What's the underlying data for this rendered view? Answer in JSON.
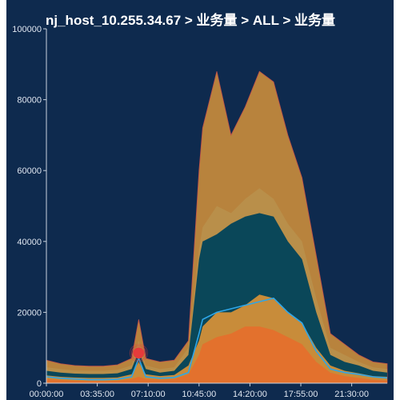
{
  "chart_data": {
    "type": "area",
    "title": "nj_host_10.255.34.67 > 业务量 > ALL > 业务量",
    "xlabel": "",
    "ylabel": "",
    "ylim": [
      0,
      100000
    ],
    "y_ticks": [
      "0",
      "20000",
      "40000",
      "60000",
      "80000",
      "100000"
    ],
    "x_ticks": [
      "00:00:00",
      "03:35:00",
      "07:10:00",
      "10:45:00",
      "14:20:00",
      "17:55:00",
      "21:30:00"
    ],
    "x_hours": [
      0,
      1,
      2,
      3,
      4,
      5,
      6,
      6.5,
      7,
      8,
      9,
      10,
      10.75,
      11,
      12,
      13,
      14,
      15,
      16,
      17,
      18,
      19,
      20,
      21,
      22,
      23,
      24
    ],
    "series": [
      {
        "color": "#e3712d",
        "values": [
          1200,
          900,
          700,
          600,
          600,
          700,
          1200,
          1800,
          1200,
          1000,
          1200,
          2500,
          8000,
          11000,
          13000,
          14000,
          16000,
          16000,
          15000,
          13000,
          11000,
          6000,
          3000,
          2000,
          1500,
          1000,
          800
        ]
      },
      {
        "color": "#c88c3a",
        "values": [
          2200,
          1800,
          1600,
          1500,
          1500,
          1600,
          2500,
          6000,
          2500,
          2000,
          2300,
          5000,
          12000,
          16000,
          20000,
          20000,
          22000,
          25000,
          24000,
          20000,
          17000,
          10000,
          5000,
          3500,
          2800,
          2000,
          1800
        ]
      },
      {
        "color": "#0a4759",
        "values": [
          3500,
          3000,
          2700,
          2600,
          2600,
          2800,
          4000,
          9000,
          4000,
          3000,
          3500,
          8000,
          35000,
          40000,
          42000,
          45000,
          47000,
          48000,
          47000,
          40000,
          35000,
          20000,
          8000,
          6000,
          5000,
          3500,
          3000
        ]
      },
      {
        "color": "#b98f4a",
        "values": [
          4500,
          4000,
          3600,
          3500,
          3500,
          3800,
          5000,
          12000,
          5000,
          4000,
          4500,
          10000,
          38000,
          44000,
          50000,
          48000,
          52000,
          55000,
          52000,
          45000,
          40000,
          24000,
          10000,
          8000,
          6000,
          4500,
          4000
        ]
      },
      {
        "color": "#b8833d",
        "values": [
          6500,
          5500,
          5000,
          4800,
          4800,
          5200,
          7000,
          18000,
          7000,
          6000,
          6500,
          12000,
          60000,
          72000,
          88000,
          70000,
          78000,
          88000,
          85000,
          70000,
          58000,
          36000,
          14000,
          11000,
          8000,
          6000,
          5500
        ]
      }
    ],
    "line": {
      "color": "#2ea6e8",
      "values": [
        1800,
        1400,
        1200,
        1000,
        1000,
        1100,
        1800,
        7000,
        1800,
        1400,
        1600,
        3000,
        14000,
        18000,
        20000,
        21000,
        22000,
        23000,
        24000,
        20000,
        17000,
        9000,
        4000,
        3000,
        2500,
        1800,
        1500
      ]
    },
    "marker": {
      "x_hours": 6.5,
      "y": 8500,
      "color": "#e53b3b"
    }
  }
}
